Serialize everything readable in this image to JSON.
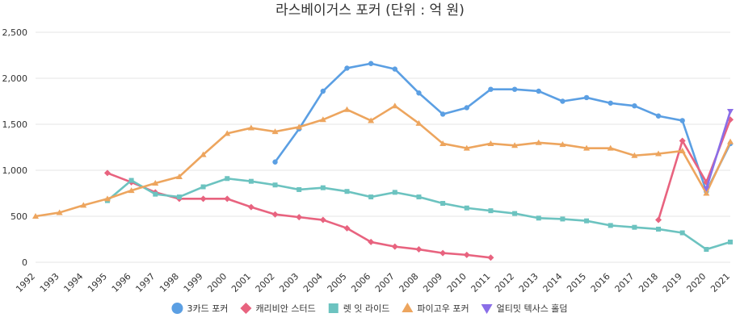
{
  "chart_data": {
    "type": "line",
    "title": "라스베이거스 포커 (단위 : 억 원)",
    "xlabel": "",
    "ylabel": "",
    "categories": [
      "1992",
      "1993",
      "1994",
      "1995",
      "1996",
      "1997",
      "1998",
      "1999",
      "2000",
      "2001",
      "2002",
      "2003",
      "2004",
      "2005",
      "2006",
      "2007",
      "2008",
      "2009",
      "2010",
      "2011",
      "2012",
      "2013",
      "2014",
      "2015",
      "2016",
      "2017",
      "2018",
      "2019",
      "2020",
      "2021"
    ],
    "ylim": [
      0,
      2500
    ],
    "yticks": [
      0,
      500,
      1000,
      1500,
      2000,
      2500
    ],
    "ytick_labels": [
      "0",
      "500",
      "1,000",
      "1,500",
      "2,000",
      "2,500"
    ],
    "grid": true,
    "legend_position": "bottom",
    "series": [
      {
        "name": "3카드 포커",
        "color": "#5b9fe3",
        "marker": "circle",
        "values": [
          null,
          null,
          null,
          null,
          null,
          null,
          null,
          null,
          null,
          null,
          1090,
          1450,
          1860,
          2110,
          2160,
          2100,
          1840,
          1610,
          1680,
          1880,
          1880,
          1860,
          1750,
          1790,
          1730,
          1700,
          1590,
          1540,
          770,
          1290
        ]
      },
      {
        "name": "캐리비안 스터드",
        "color": "#e8637f",
        "marker": "diamond",
        "values": [
          null,
          null,
          null,
          970,
          870,
          760,
          690,
          690,
          690,
          600,
          520,
          490,
          460,
          370,
          220,
          170,
          140,
          100,
          80,
          50,
          null,
          null,
          null,
          null,
          null,
          null,
          460,
          1320,
          870,
          1550
        ]
      },
      {
        "name": "렛 잇 라이드",
        "color": "#6cc3c0",
        "marker": "square",
        "values": [
          null,
          null,
          null,
          670,
          890,
          740,
          710,
          820,
          910,
          880,
          840,
          790,
          810,
          770,
          710,
          760,
          710,
          640,
          590,
          560,
          530,
          480,
          470,
          450,
          400,
          380,
          360,
          320,
          140,
          220
        ]
      },
      {
        "name": "파이고우 포커",
        "color": "#eda55e",
        "marker": "triangle",
        "values": [
          500,
          540,
          620,
          690,
          780,
          860,
          930,
          1170,
          1400,
          1460,
          1420,
          1470,
          1550,
          1660,
          1540,
          1700,
          1510,
          1290,
          1240,
          1290,
          1270,
          1300,
          1280,
          1240,
          1240,
          1160,
          1180,
          1210,
          750,
          1310
        ]
      },
      {
        "name": "얼티밋 텍사스 홀덤",
        "color": "#8a6ee8",
        "marker": "triangle-down",
        "values": [
          null,
          null,
          null,
          null,
          null,
          null,
          null,
          null,
          null,
          null,
          null,
          null,
          null,
          null,
          null,
          null,
          null,
          null,
          null,
          null,
          null,
          null,
          null,
          null,
          null,
          null,
          null,
          null,
          800,
          1640
        ]
      }
    ]
  }
}
